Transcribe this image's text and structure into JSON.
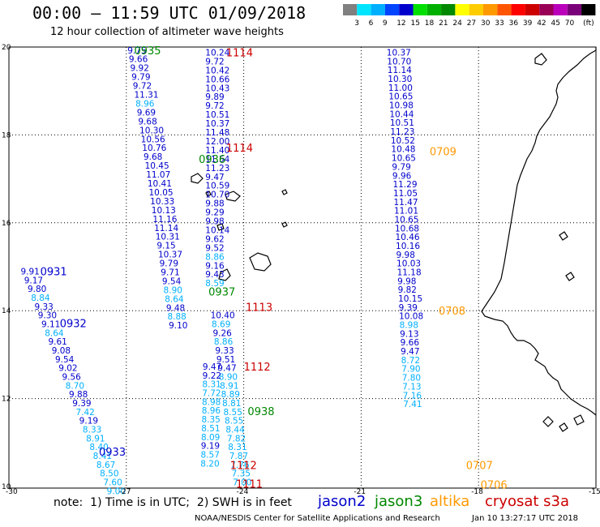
{
  "header": {
    "title": "00:00 – 11:59 UTC 01/09/2018",
    "subtitle": "12 hour collection of altimeter wave heights"
  },
  "colorbar": {
    "colors": [
      "#808080",
      "#00e5ff",
      "#00b0ff",
      "#0044ff",
      "#0000cc",
      "#00e000",
      "#00b000",
      "#008800",
      "#ffff00",
      "#ffcc00",
      "#ff9900",
      "#ff5500",
      "#ff0000",
      "#cc0000",
      "#990055",
      "#bb00bb",
      "#7a007a",
      "#000000"
    ],
    "labels": [
      "3",
      "6",
      "9",
      "12",
      "15",
      "18",
      "21",
      "24",
      "27",
      "30",
      "33",
      "36",
      "39",
      "42",
      "45",
      "70",
      "(ft)"
    ]
  },
  "axes": {
    "x_labels": [
      "-30",
      "-27",
      "-24",
      "-21",
      "-18",
      "-15"
    ],
    "y_labels": [
      "20",
      "18",
      "16",
      "14",
      "12",
      "10"
    ]
  },
  "sat_colors": {
    "jason2": "#0000cc",
    "jason3": "#008800",
    "altika": "#ff9900",
    "cryosat": "#cc0000"
  },
  "passes": [
    {
      "label": "0935",
      "sat": "jason3",
      "lon": -26.8,
      "lat": 19.93
    },
    {
      "label": "1114",
      "sat": "cryosat",
      "lon": -24.45,
      "lat": 19.88
    },
    {
      "label": "1114",
      "sat": "cryosat",
      "lon": -24.45,
      "lat": 17.71
    },
    {
      "label": "0936",
      "sat": "jason3",
      "lon": -25.15,
      "lat": 17.45
    },
    {
      "label": "0709",
      "sat": "altika",
      "lon": -19.25,
      "lat": 17.63
    },
    {
      "label": "0931",
      "sat": "jason2",
      "lon": -29.2,
      "lat": 14.9
    },
    {
      "label": "0937",
      "sat": "jason3",
      "lon": -24.9,
      "lat": 14.44
    },
    {
      "label": "1113",
      "sat": "cryosat",
      "lon": -23.95,
      "lat": 14.09
    },
    {
      "label": "0708",
      "sat": "altika",
      "lon": -19.02,
      "lat": 14.0
    },
    {
      "label": "0932",
      "sat": "jason2",
      "lon": -28.7,
      "lat": 13.72
    },
    {
      "label": "1112",
      "sat": "cryosat",
      "lon": -24.0,
      "lat": 12.73
    },
    {
      "label": "0938",
      "sat": "jason3",
      "lon": -23.9,
      "lat": 11.72
    },
    {
      "label": "0933",
      "sat": "jason2",
      "lon": -27.7,
      "lat": 10.79
    },
    {
      "label": "1112",
      "sat": "cryosat",
      "lon": -24.35,
      "lat": 10.49
    },
    {
      "label": "0707",
      "sat": "altika",
      "lon": -18.32,
      "lat": 10.49
    },
    {
      "label": "1111",
      "sat": "cryosat",
      "lon": -24.2,
      "lat": 10.06
    },
    {
      "label": "0706",
      "sat": "altika",
      "lon": -17.95,
      "lat": 10.05
    }
  ],
  "tracks": [
    {
      "id": "track-a",
      "start": [
        -26.97,
        19.93
      ],
      "step": [
        0.034,
        -0.202
      ],
      "values": [
        {
          "v": "9.75",
          "c": "#0000cc"
        },
        {
          "v": "9.66",
          "c": "#0000cc"
        },
        {
          "v": "9.92",
          "c": "#0000cc"
        },
        {
          "v": "9.79",
          "c": "#0000cc"
        },
        {
          "v": "9.72",
          "c": "#0000cc"
        },
        {
          "v": "11.31",
          "c": "#0000cc"
        },
        {
          "v": "8.96",
          "c": "#00b0ff"
        },
        {
          "v": "9.69",
          "c": "#0000cc"
        },
        {
          "v": "9.68",
          "c": "#0000cc"
        },
        {
          "v": "10.30",
          "c": "#0000cc"
        },
        {
          "v": "10.56",
          "c": "#0000cc"
        },
        {
          "v": "10.76",
          "c": "#0000cc"
        },
        {
          "v": "9.68",
          "c": "#0000cc"
        },
        {
          "v": "10.45",
          "c": "#0000cc"
        },
        {
          "v": "11.07",
          "c": "#0000cc"
        },
        {
          "v": "10.41",
          "c": "#0000cc"
        },
        {
          "v": "10.05",
          "c": "#0000cc"
        },
        {
          "v": "10.33",
          "c": "#0000cc"
        },
        {
          "v": "10.13",
          "c": "#0000cc"
        },
        {
          "v": "11.16",
          "c": "#0000cc"
        },
        {
          "v": "11.14",
          "c": "#0000cc"
        },
        {
          "v": "10.31",
          "c": "#0000cc"
        },
        {
          "v": "9.15",
          "c": "#0000cc"
        },
        {
          "v": "10.37",
          "c": "#0000cc"
        },
        {
          "v": "9.79",
          "c": "#0000cc"
        },
        {
          "v": "9.71",
          "c": "#0000cc"
        },
        {
          "v": "9.54",
          "c": "#0000cc"
        },
        {
          "v": "8.90",
          "c": "#00b0ff"
        },
        {
          "v": "8.64",
          "c": "#00b0ff"
        },
        {
          "v": "9.48",
          "c": "#0000cc"
        },
        {
          "v": "8.88",
          "c": "#00b0ff"
        },
        {
          "v": "9.10",
          "c": "#0000cc"
        }
      ]
    },
    {
      "id": "track-b",
      "start": [
        -24.98,
        19.88
      ],
      "step": [
        0.0,
        -0.202
      ],
      "values": [
        {
          "v": "10.24",
          "c": "#0000cc"
        },
        {
          "v": "9.72",
          "c": "#0000cc"
        },
        {
          "v": "10.42",
          "c": "#0000cc"
        },
        {
          "v": "10.66",
          "c": "#0000cc"
        },
        {
          "v": "10.43",
          "c": "#0000cc"
        },
        {
          "v": "9.89",
          "c": "#0000cc"
        },
        {
          "v": "9.72",
          "c": "#0000cc"
        },
        {
          "v": "10.51",
          "c": "#0000cc"
        },
        {
          "v": "10.37",
          "c": "#0000cc"
        },
        {
          "v": "11.48",
          "c": "#0000cc"
        },
        {
          "v": "12.00",
          "c": "#0000cc"
        },
        {
          "v": "11.40",
          "c": "#0000cc"
        },
        {
          "v": "11.54",
          "c": "#0000cc"
        },
        {
          "v": "11.23",
          "c": "#0000cc"
        },
        {
          "v": "9.47",
          "c": "#0000cc"
        },
        {
          "v": "10.59",
          "c": "#0000cc"
        },
        {
          "v": "10.70",
          "c": "#0000cc"
        },
        {
          "v": "9.88",
          "c": "#0000cc"
        },
        {
          "v": "9.29",
          "c": "#0000cc"
        },
        {
          "v": "9.98",
          "c": "#0000cc"
        },
        {
          "v": "10.14",
          "c": "#0000cc"
        },
        {
          "v": "9.62",
          "c": "#0000cc"
        },
        {
          "v": "9.52",
          "c": "#0000cc"
        },
        {
          "v": "8.86",
          "c": "#00b0ff"
        },
        {
          "v": "9.16",
          "c": "#0000cc"
        },
        {
          "v": "9.43",
          "c": "#0000cc"
        },
        {
          "v": "8.59",
          "c": "#00b0ff"
        }
      ]
    },
    {
      "id": "track-c",
      "start": [
        -24.85,
        13.9
      ],
      "step": [
        0.03,
        -0.2
      ],
      "values": [
        {
          "v": "10.40",
          "c": "#0000cc"
        },
        {
          "v": "8.69",
          "c": "#00b0ff"
        },
        {
          "v": "9.26",
          "c": "#0000cc"
        },
        {
          "v": "8.86",
          "c": "#00b0ff"
        },
        {
          "v": "9.33",
          "c": "#0000cc"
        },
        {
          "v": "9.51",
          "c": "#0000cc"
        },
        {
          "v": "9.47",
          "c": "#0000cc"
        },
        {
          "v": "8.90",
          "c": "#00b0ff"
        },
        {
          "v": "8.91",
          "c": "#00b0ff"
        },
        {
          "v": "8.89",
          "c": "#00b0ff"
        },
        {
          "v": "8.81",
          "c": "#00b0ff"
        },
        {
          "v": "8.55",
          "c": "#00b0ff"
        },
        {
          "v": "8.55",
          "c": "#00b0ff"
        },
        {
          "v": "8.44",
          "c": "#00b0ff"
        },
        {
          "v": "7.82",
          "c": "#00b0ff"
        },
        {
          "v": "8.31",
          "c": "#00b0ff"
        },
        {
          "v": "7.87",
          "c": "#00b0ff"
        },
        {
          "v": "7.76",
          "c": "#00b0ff"
        },
        {
          "v": "7.35",
          "c": "#00b0ff"
        },
        {
          "v": "7.00",
          "c": "#00b0ff"
        }
      ]
    },
    {
      "id": "track-d",
      "start": [
        -25.05,
        12.73
      ],
      "step": [
        -0.005,
        -0.2
      ],
      "values": [
        {
          "v": "9.47",
          "c": "#0000cc"
        },
        {
          "v": "9.22",
          "c": "#0000cc"
        },
        {
          "v": "8.31",
          "c": "#00b0ff"
        },
        {
          "v": "7.72",
          "c": "#00b0ff"
        },
        {
          "v": "8.98",
          "c": "#00b0ff"
        },
        {
          "v": "8.96",
          "c": "#00b0ff"
        },
        {
          "v": "8.35",
          "c": "#00b0ff"
        },
        {
          "v": "8.51",
          "c": "#00b0ff"
        },
        {
          "v": "8.09",
          "c": "#00b0ff"
        },
        {
          "v": "9.19",
          "c": "#0000cc"
        },
        {
          "v": "8.57",
          "c": "#00b0ff"
        },
        {
          "v": "8.20",
          "c": "#00b0ff"
        }
      ]
    },
    {
      "id": "track-e",
      "start": [
        -29.7,
        14.9
      ],
      "step": [
        0.088,
        -0.2
      ],
      "values": [
        {
          "v": "9.91",
          "c": "#0000cc"
        },
        {
          "v": "9.17",
          "c": "#0000cc"
        },
        {
          "v": "9.80",
          "c": "#0000cc"
        },
        {
          "v": "8.84",
          "c": "#00b0ff"
        },
        {
          "v": "9.33",
          "c": "#0000cc"
        },
        {
          "v": "9.30",
          "c": "#0000cc"
        },
        {
          "v": "9.11",
          "c": "#0000cc"
        },
        {
          "v": "8.64",
          "c": "#00b0ff"
        },
        {
          "v": "9.61",
          "c": "#0000cc"
        },
        {
          "v": "9.08",
          "c": "#0000cc"
        },
        {
          "v": "9.54",
          "c": "#0000cc"
        },
        {
          "v": "9.02",
          "c": "#0000cc"
        },
        {
          "v": "9.56",
          "c": "#0000cc"
        },
        {
          "v": "8.70",
          "c": "#00b0ff"
        },
        {
          "v": "9.88",
          "c": "#0000cc"
        },
        {
          "v": "9.39",
          "c": "#0000cc"
        },
        {
          "v": "7.42",
          "c": "#00b0ff"
        },
        {
          "v": "9.19",
          "c": "#0000cc"
        },
        {
          "v": "8.33",
          "c": "#00b0ff"
        },
        {
          "v": "8.91",
          "c": "#00b0ff"
        },
        {
          "v": "8.40",
          "c": "#00b0ff"
        },
        {
          "v": "8.41",
          "c": "#00b0ff"
        },
        {
          "v": "8.67",
          "c": "#00b0ff"
        },
        {
          "v": "8.50",
          "c": "#00b0ff"
        },
        {
          "v": "7.60",
          "c": "#00b0ff"
        },
        {
          "v": "9.00",
          "c": "#00b0ff"
        }
      ]
    },
    {
      "id": "track-f",
      "start": [
        -20.35,
        19.88
      ],
      "step": [
        0.0106,
        -0.2
      ],
      "values": [
        {
          "v": "10.37",
          "c": "#0000cc"
        },
        {
          "v": "10.70",
          "c": "#0000cc"
        },
        {
          "v": "11.14",
          "c": "#0000cc"
        },
        {
          "v": "10.30",
          "c": "#0000cc"
        },
        {
          "v": "11.00",
          "c": "#0000cc"
        },
        {
          "v": "10.65",
          "c": "#0000cc"
        },
        {
          "v": "10.98",
          "c": "#0000cc"
        },
        {
          "v": "10.44",
          "c": "#0000cc"
        },
        {
          "v": "10.51",
          "c": "#0000cc"
        },
        {
          "v": "11.23",
          "c": "#0000cc"
        },
        {
          "v": "10.52",
          "c": "#0000cc"
        },
        {
          "v": "10.48",
          "c": "#0000cc"
        },
        {
          "v": "10.65",
          "c": "#0000cc"
        },
        {
          "v": "9.79",
          "c": "#0000cc"
        },
        {
          "v": "9.96",
          "c": "#0000cc"
        },
        {
          "v": "11.29",
          "c": "#0000cc"
        },
        {
          "v": "11.05",
          "c": "#0000cc"
        },
        {
          "v": "11.47",
          "c": "#0000cc"
        },
        {
          "v": "11.01",
          "c": "#0000cc"
        },
        {
          "v": "10.65",
          "c": "#0000cc"
        },
        {
          "v": "10.68",
          "c": "#0000cc"
        },
        {
          "v": "10.46",
          "c": "#0000cc"
        },
        {
          "v": "10.16",
          "c": "#0000cc"
        },
        {
          "v": "9.98",
          "c": "#0000cc"
        },
        {
          "v": "10.03",
          "c": "#0000cc"
        },
        {
          "v": "11.18",
          "c": "#0000cc"
        },
        {
          "v": "9.98",
          "c": "#0000cc"
        },
        {
          "v": "9.82",
          "c": "#0000cc"
        },
        {
          "v": "10.15",
          "c": "#0000cc"
        },
        {
          "v": "9.39",
          "c": "#0000cc"
        },
        {
          "v": "10.08",
          "c": "#0000cc"
        },
        {
          "v": "8.98",
          "c": "#00b0ff"
        },
        {
          "v": "9.13",
          "c": "#0000cc"
        },
        {
          "v": "9.66",
          "c": "#0000cc"
        },
        {
          "v": "9.47",
          "c": "#0000cc"
        },
        {
          "v": "8.72",
          "c": "#00b0ff"
        },
        {
          "v": "7.90",
          "c": "#00b0ff"
        },
        {
          "v": "7.80",
          "c": "#00b0ff"
        },
        {
          "v": "7.13",
          "c": "#00b0ff"
        },
        {
          "v": "7.16",
          "c": "#00b0ff"
        },
        {
          "v": "7.41",
          "c": "#00b0ff"
        }
      ]
    }
  ],
  "footer": {
    "note": "note:  1) Time is in UTC;  2) SWH is in feet",
    "satellites": [
      {
        "name": "jason2",
        "color": "#0000cc"
      },
      {
        "name": "jason3",
        "color": "#008800"
      },
      {
        "name": "altika",
        "color": "#ff9900"
      },
      {
        "name": "cryosat s3a",
        "color": "#cc0000"
      }
    ],
    "credit": "NOAA/NESDIS Center for Satellite Applications and Research",
    "date": "Jan 10 13:27:17 UTC 2018"
  }
}
